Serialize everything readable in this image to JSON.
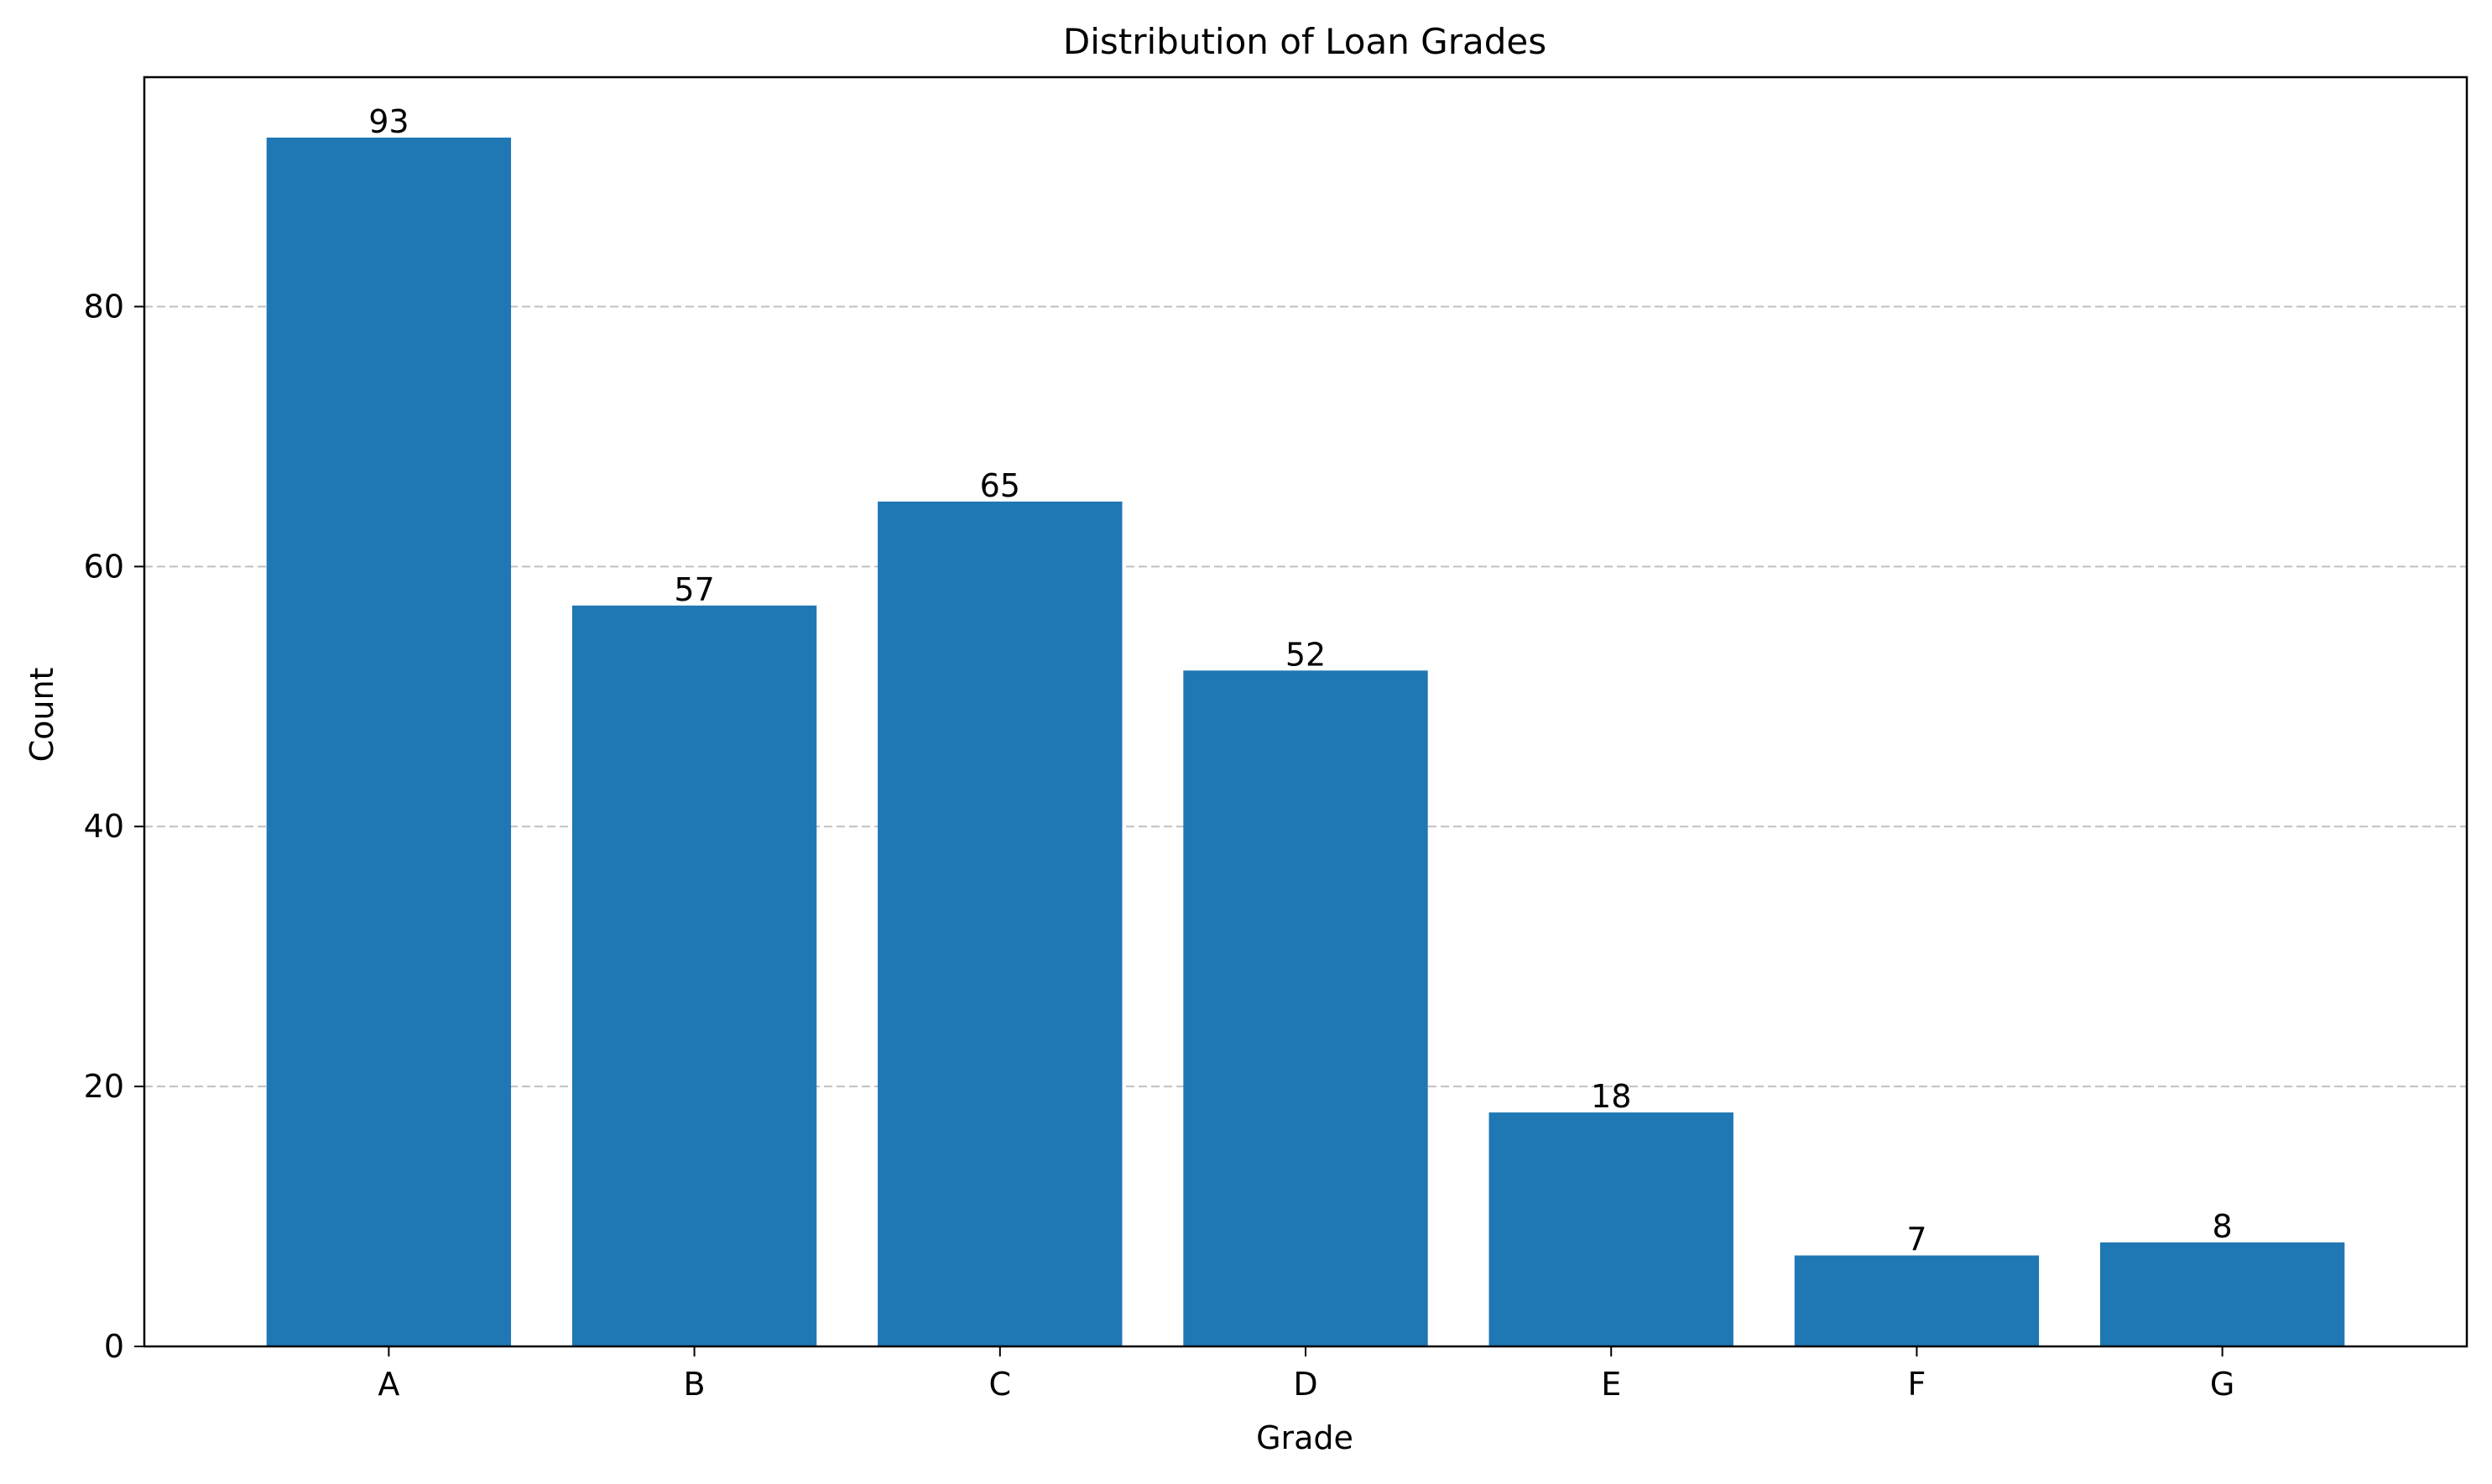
{
  "chart_data": {
    "type": "bar",
    "title": "Distribution of Loan Grades",
    "xlabel": "Grade",
    "ylabel": "Count",
    "categories": [
      "A",
      "B",
      "C",
      "D",
      "E",
      "F",
      "G"
    ],
    "values": [
      93,
      57,
      65,
      52,
      18,
      7,
      8
    ],
    "data_labels": [
      "93",
      "57",
      "65",
      "52",
      "18",
      "7",
      "8"
    ],
    "ylim": [
      0,
      97.65
    ],
    "yticks": [
      0,
      20,
      40,
      60,
      80
    ],
    "ytick_labels": [
      "0",
      "20",
      "40",
      "60",
      "80"
    ],
    "grid": "y, dashed",
    "legend": "none",
    "bar_color": "#1f77b4",
    "grid_color": "#c0c0c0"
  }
}
